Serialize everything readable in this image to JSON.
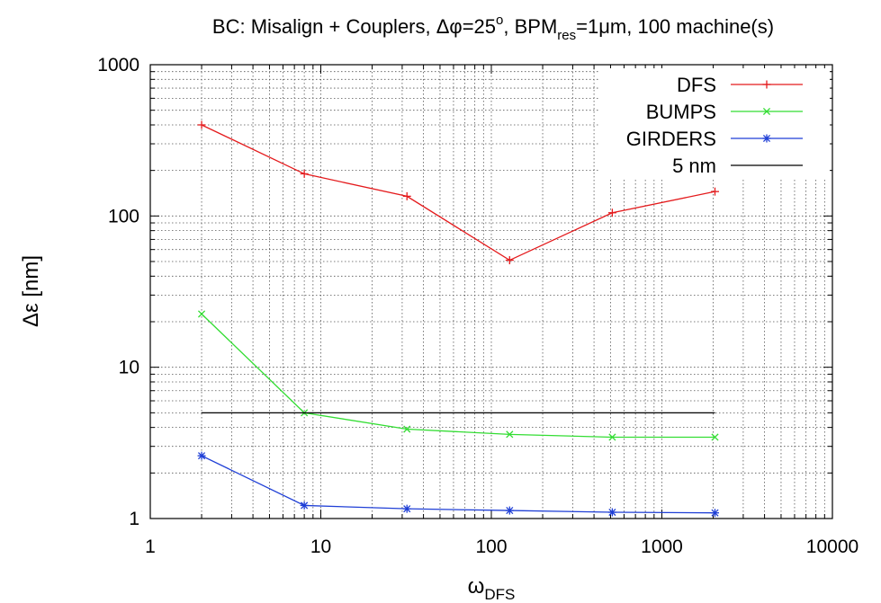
{
  "chart_data": {
    "type": "line",
    "title": {
      "prefix": "BC: Misalign + Couplers, ",
      "delta_phi_symbol": "Δφ",
      "delta_phi_value": "=25",
      "degree_symbol": "o",
      "separator1": ", ",
      "bpm_main": "BPM",
      "bpm_subscript": "res",
      "bpm_value": "=1μm",
      "suffix": ", 100 machine(s)"
    },
    "xlabel": {
      "main": "ω",
      "subscript": "DFS"
    },
    "ylabel": "Δε [nm]",
    "x_scale": "log",
    "y_scale": "log",
    "xlim": [
      1,
      10000
    ],
    "ylim": [
      1,
      1000
    ],
    "x_ticks": [
      {
        "value": 1,
        "label": "1"
      },
      {
        "value": 10,
        "label": "10"
      },
      {
        "value": 100,
        "label": "100"
      },
      {
        "value": 1000,
        "label": "1000"
      },
      {
        "value": 10000,
        "label": "10000"
      }
    ],
    "y_ticks": [
      {
        "value": 1,
        "label": "1"
      },
      {
        "value": 10,
        "label": "10"
      },
      {
        "value": 100,
        "label": "100"
      },
      {
        "value": 1000,
        "label": "1000"
      }
    ],
    "grid": true,
    "legend_position": "top-right",
    "series": [
      {
        "name": "DFS",
        "color": "#e41a1c",
        "marker": "plus",
        "x": [
          2,
          8,
          32,
          128,
          512,
          2048
        ],
        "y": [
          400,
          190,
          135,
          51,
          105,
          145
        ]
      },
      {
        "name": "BUMPS",
        "color": "#33dd33",
        "marker": "cross",
        "x": [
          2,
          8,
          32,
          128,
          512,
          2048
        ],
        "y": [
          22.5,
          5.0,
          3.9,
          3.6,
          3.45,
          3.45
        ]
      },
      {
        "name": "GIRDERS",
        "color": "#1f3fd6",
        "marker": "star",
        "x": [
          2,
          8,
          32,
          128,
          512,
          2048
        ],
        "y": [
          2.6,
          1.22,
          1.16,
          1.13,
          1.1,
          1.09
        ]
      },
      {
        "name": "5 nm",
        "color": "#000000",
        "marker": "none",
        "x": [
          2,
          2048
        ],
        "y": [
          5,
          5
        ]
      }
    ]
  }
}
